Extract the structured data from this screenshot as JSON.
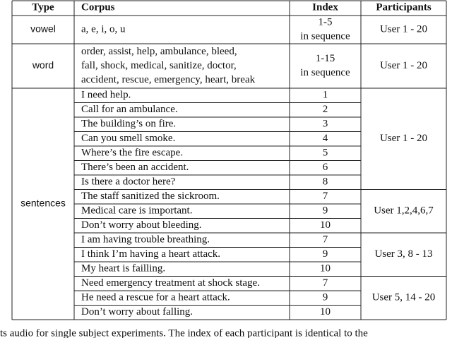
{
  "table": {
    "header": [
      "Type",
      "Corpus",
      "Index",
      "Participants"
    ],
    "vowel": {
      "type": "vowel",
      "corpus": [
        "a, e, i, o, u"
      ],
      "index": [
        "1-5",
        "in sequence"
      ],
      "participants": "User 1 - 20"
    },
    "word": {
      "type": "word",
      "corpus": [
        "order, assist, help, ambulance, bleed,",
        "fall, shock, medical, sanitize, doctor,",
        "accident, rescue, emergency, heart, break"
      ],
      "index": [
        "1-15",
        "in sequence"
      ],
      "participants": "User 1 - 20"
    },
    "sentences": {
      "type": "sentences",
      "rows": [
        [
          "I need help.",
          "1"
        ],
        [
          "Call for an ambulance.",
          "2"
        ],
        [
          "The building’s on fire.",
          "3"
        ],
        [
          "Can you smell smoke.",
          "4"
        ],
        [
          "Where’s the fire escape.",
          "5"
        ],
        [
          "There’s been an accident.",
          "6"
        ],
        [
          "Is there a doctor here?",
          "8"
        ],
        [
          "The staff sanitized the sickroom.",
          "7"
        ],
        [
          "Medical care is important.",
          "9"
        ],
        [
          "Don’t worry about bleeding.",
          "10"
        ],
        [
          "I am having trouble breathing.",
          "7"
        ],
        [
          "I think I’m having a heart attack.",
          "9"
        ],
        [
          "My heart is failling.",
          "10"
        ],
        [
          "Need emergency treatment at shock stage.",
          "7"
        ],
        [
          "He need a rescue for a heart attack.",
          "9"
        ],
        [
          "Don’t worry about falling.",
          "10"
        ]
      ],
      "participants": [
        {
          "label": "User 1 - 20",
          "rows": 7
        },
        {
          "label": "User 1,2,4,6,7",
          "rows": 3
        },
        {
          "label": "User 3, 8 - 13",
          "rows": 3
        },
        {
          "label": "User 5, 14 - 20",
          "rows": 3
        }
      ]
    }
  },
  "caption": "ts audio for single subject experiments. The index of each participant is identical to the"
}
